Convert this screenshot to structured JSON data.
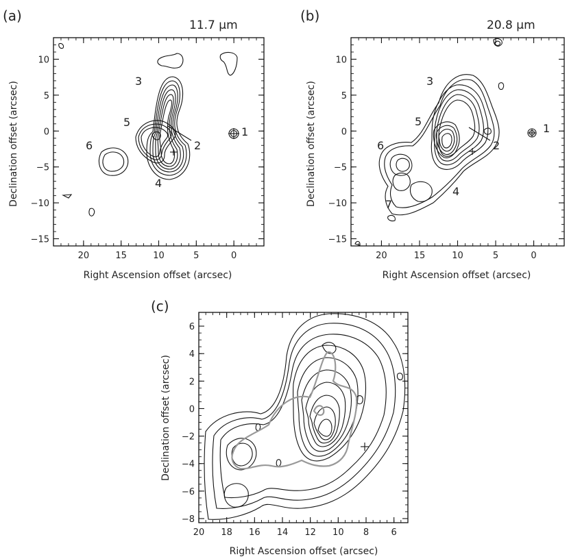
{
  "chart_data": [
    {
      "type": "contour",
      "panel_label": "(a)",
      "wavelength": "11.7 μm",
      "xlabel": "Right Ascension offset (arcsec)",
      "ylabel": "Declination offset (arcsec)",
      "xlim": [
        24,
        -4
      ],
      "ylim": [
        -16,
        13
      ],
      "xticks": [
        20,
        15,
        10,
        5,
        0
      ],
      "yticks": [
        10,
        5,
        0,
        -5,
        -10,
        -15
      ],
      "sources": [
        {
          "label": "1",
          "x": 0,
          "y": 0
        },
        {
          "label": "2",
          "x": 8,
          "y": -1
        },
        {
          "label": "3",
          "x": 12,
          "y": 7
        },
        {
          "label": "4",
          "x": 10,
          "y": -5.5
        },
        {
          "label": "5",
          "x": 13,
          "y": 1
        },
        {
          "label": "6",
          "x": 18,
          "y": -1.5
        }
      ],
      "contour_levels": 10
    },
    {
      "type": "contour",
      "panel_label": "(b)",
      "wavelength": "20.8 μm",
      "xlabel": "Right Ascension offset (arcsec)",
      "ylabel": "Declination offset (arcsec)",
      "xlim": [
        24,
        -4
      ],
      "ylim": [
        -16,
        13
      ],
      "xticks": [
        20,
        15,
        10,
        5,
        0
      ],
      "yticks": [
        10,
        5,
        0,
        -5,
        -10,
        -15
      ],
      "sources": [
        {
          "label": "1",
          "x": 0,
          "y": 0
        },
        {
          "label": "2",
          "x": 8,
          "y": -1
        },
        {
          "label": "3",
          "x": 12,
          "y": 7
        },
        {
          "label": "4",
          "x": 10,
          "y": -5.5
        },
        {
          "label": "5",
          "x": 13,
          "y": 1
        },
        {
          "label": "6",
          "x": 18,
          "y": -1.5
        },
        {
          "label": "7",
          "x": 19,
          "y": -10
        }
      ],
      "contour_levels": 12
    },
    {
      "type": "contour",
      "panel_label": "(c)",
      "xlabel": "Right Ascension offset (arcsec)",
      "ylabel": "Declination offset (arcsec)",
      "xlim": [
        20,
        5
      ],
      "ylim": [
        -8.3,
        7
      ],
      "xticks": [
        20,
        18,
        16,
        14,
        12,
        10,
        8,
        6
      ],
      "yticks": [
        6,
        4,
        2,
        0,
        -2,
        -4,
        -6,
        -8
      ],
      "overlay": "grey contour of 11.7 μm emission on 20.8 μm contours",
      "contour_levels": 12
    }
  ]
}
